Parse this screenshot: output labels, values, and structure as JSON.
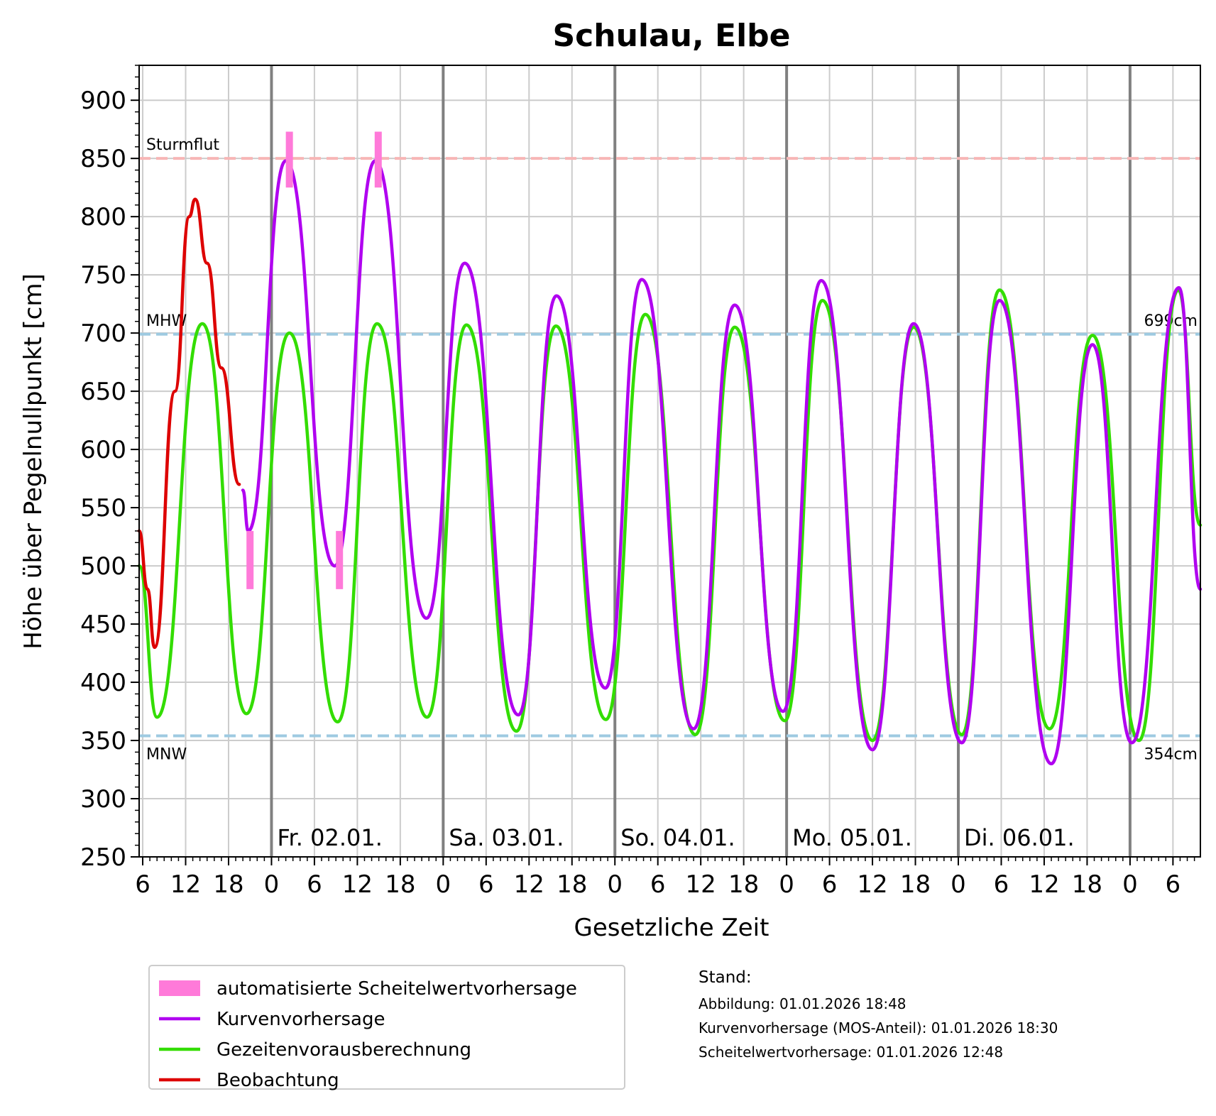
{
  "chart_data": {
    "type": "line",
    "title": "Schulau, Elbe",
    "xlabel": "Gesetzliche Zeit",
    "ylabel": "Höhe über Pegelnullpunkt [cm]",
    "ylim": [
      250,
      930
    ],
    "xlim": [
      "2026-01-01 05:30",
      "2026-01-07 09:50"
    ],
    "yticks": [
      250,
      300,
      350,
      400,
      450,
      500,
      550,
      600,
      650,
      700,
      750,
      800,
      850,
      900
    ],
    "xtick_hours": [
      "6",
      "12",
      "18",
      "0",
      "6",
      "12",
      "18",
      "0",
      "6",
      "12",
      "18",
      "0",
      "6",
      "12",
      "18",
      "0",
      "6",
      "12",
      "18",
      "0",
      "6",
      "12",
      "18",
      "0",
      "6"
    ],
    "day_labels": [
      {
        "label": "Fr. 02.01.",
        "date": "2026-01-02"
      },
      {
        "label": "Sa. 03.01.",
        "date": "2026-01-03"
      },
      {
        "label": "So. 04.01.",
        "date": "2026-01-04"
      },
      {
        "label": "Mo. 05.01.",
        "date": "2026-01-05"
      },
      {
        "label": "Di. 06.01.",
        "date": "2026-01-06"
      }
    ],
    "grid": true,
    "reference_lines": [
      {
        "name": "Sturmflut",
        "value": 850,
        "color": "#f7b6b6",
        "label_left": "Sturmflut",
        "label_right": ""
      },
      {
        "name": "MHW",
        "value": 699,
        "color": "#9ecae1",
        "label_left": "MHW",
        "label_right": "699cm"
      },
      {
        "name": "MNW",
        "value": 354,
        "color": "#9ecae1",
        "label_left": "MNW",
        "label_right": "354cm"
      }
    ],
    "series": [
      {
        "name": "Gezeitenvorausberechnung",
        "color": "#33dd00",
        "points": [
          [
            "2026-01-01 05:30",
            500
          ],
          [
            "2026-01-01 08:00",
            370
          ],
          [
            "2026-01-01 14:20",
            708
          ],
          [
            "2026-01-01 20:30",
            373
          ],
          [
            "2026-01-02 02:30",
            700
          ],
          [
            "2026-01-02 09:15",
            366
          ],
          [
            "2026-01-02 14:45",
            708
          ],
          [
            "2026-01-02 21:45",
            370
          ],
          [
            "2026-01-03 03:15",
            707
          ],
          [
            "2026-01-03 10:15",
            358
          ],
          [
            "2026-01-03 15:45",
            706
          ],
          [
            "2026-01-03 22:45",
            368
          ],
          [
            "2026-01-04 04:15",
            716
          ],
          [
            "2026-01-04 11:15",
            355
          ],
          [
            "2026-01-04 16:45",
            705
          ],
          [
            "2026-01-04 23:45",
            367
          ],
          [
            "2026-01-05 05:00",
            728
          ],
          [
            "2026-01-05 12:00",
            350
          ],
          [
            "2026-01-05 17:45",
            705
          ],
          [
            "2026-01-06 00:30",
            355
          ],
          [
            "2026-01-06 05:45",
            737
          ],
          [
            "2026-01-06 12:45",
            360
          ],
          [
            "2026-01-06 18:45",
            698
          ],
          [
            "2026-01-07 01:15",
            350
          ],
          [
            "2026-01-07 06:45",
            737
          ],
          [
            "2026-01-07 09:50",
            535
          ]
        ]
      },
      {
        "name": "Kurvenvorhersage",
        "color": "#b000f0",
        "points": [
          [
            "2026-01-01 20:00",
            565
          ],
          [
            "2026-01-01 20:45",
            530
          ],
          [
            "2026-01-02 02:00",
            848
          ],
          [
            "2026-01-02 08:50",
            500
          ],
          [
            "2026-01-02 14:30",
            848
          ],
          [
            "2026-01-02 21:40",
            455
          ],
          [
            "2026-01-03 03:00",
            760
          ],
          [
            "2026-01-03 10:30",
            372
          ],
          [
            "2026-01-03 15:50",
            732
          ],
          [
            "2026-01-03 22:40",
            395
          ],
          [
            "2026-01-04 03:45",
            746
          ],
          [
            "2026-01-04 11:00",
            360
          ],
          [
            "2026-01-04 16:45",
            724
          ],
          [
            "2026-01-04 23:30",
            375
          ],
          [
            "2026-01-05 04:50",
            745
          ],
          [
            "2026-01-05 12:00",
            342
          ],
          [
            "2026-01-05 17:45",
            708
          ],
          [
            "2026-01-06 00:30",
            348
          ],
          [
            "2026-01-06 05:45",
            728
          ],
          [
            "2026-01-06 13:00",
            330
          ],
          [
            "2026-01-06 18:45",
            690
          ],
          [
            "2026-01-07 00:15",
            348
          ],
          [
            "2026-01-07 06:50",
            739
          ],
          [
            "2026-01-07 09:50",
            480
          ]
        ]
      },
      {
        "name": "Beobachtung",
        "color": "#dd0000",
        "points": [
          [
            "2026-01-01 05:30",
            530
          ],
          [
            "2026-01-01 06:40",
            480
          ],
          [
            "2026-01-01 07:40",
            430
          ],
          [
            "2026-01-01 10:30",
            650
          ],
          [
            "2026-01-01 12:30",
            800
          ],
          [
            "2026-01-01 13:20",
            815
          ],
          [
            "2026-01-01 15:00",
            760
          ],
          [
            "2026-01-01 17:00",
            670
          ],
          [
            "2026-01-01 19:30",
            570
          ]
        ]
      }
    ],
    "scheitelwert_marks": [
      {
        "time": "2026-01-01 21:00",
        "low": 480,
        "high": 530
      },
      {
        "time": "2026-01-02 02:30",
        "low": 825,
        "high": 873
      },
      {
        "time": "2026-01-02 09:30",
        "low": 480,
        "high": 530
      },
      {
        "time": "2026-01-02 14:55",
        "low": 825,
        "high": 873
      }
    ],
    "legend": {
      "placement": "bottom-left",
      "entries": [
        {
          "label": "automatisierte Scheitelwertvorhersage",
          "color": "#ff7ad9",
          "kind": "bar"
        },
        {
          "label": "Kurvenvorhersage",
          "color": "#b000f0",
          "kind": "line"
        },
        {
          "label": "Gezeitenvorausberechnung",
          "color": "#33dd00",
          "kind": "line"
        },
        {
          "label": "Beobachtung",
          "color": "#dd0000",
          "kind": "line"
        }
      ]
    },
    "stand": {
      "heading": "Stand:",
      "lines": [
        "Abbildung: 01.01.2026 18:48",
        "Kurvenvorhersage (MOS-Anteil): 01.01.2026 18:30",
        "Scheitelwertvorhersage: 01.01.2026 12:48"
      ]
    }
  }
}
